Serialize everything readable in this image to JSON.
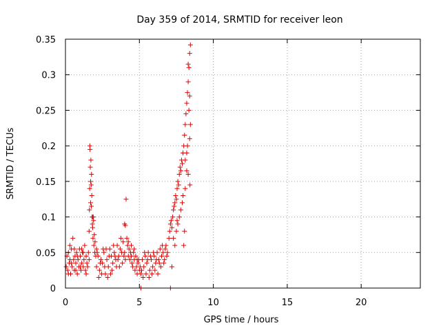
{
  "chart_data": {
    "type": "scatter",
    "title": "Day 359 of 2014, SRMTID for receiver leon",
    "xlabel": "GPS time / hours",
    "ylabel": "SRMTID / TECUs",
    "xlim": [
      0,
      24
    ],
    "ylim": [
      0,
      0.35
    ],
    "xticks": [
      0,
      5,
      10,
      15,
      20
    ],
    "yticks": [
      0,
      0.05,
      0.1,
      0.15,
      0.2,
      0.25,
      0.3,
      0.35
    ],
    "xtick_labels": [
      "0",
      "5",
      "10",
      "15",
      "20"
    ],
    "ytick_labels": [
      "0",
      "0.05",
      "0.1",
      "0.15",
      "0.2",
      "0.25",
      "0.3",
      "0.35"
    ],
    "grid": true,
    "marker": "plus",
    "color": "#e00000",
    "series": [
      {
        "points": [
          [
            0.05,
            0.03
          ],
          [
            0.1,
            0.045
          ],
          [
            0.15,
            0.025
          ],
          [
            0.2,
            0.05
          ],
          [
            0.25,
            0.035
          ],
          [
            0.3,
            0.04
          ],
          [
            0.35,
            0.02
          ],
          [
            0.4,
            0.055
          ],
          [
            0.45,
            0.03
          ],
          [
            0.5,
            0.07
          ],
          [
            0.55,
            0.04
          ],
          [
            0.6,
            0.025
          ],
          [
            0.65,
            0.045
          ],
          [
            0.7,
            0.035
          ],
          [
            0.75,
            0.05
          ],
          [
            0.8,
            0.02
          ],
          [
            0.85,
            0.04
          ],
          [
            0.9,
            0.03
          ],
          [
            0.95,
            0.055
          ],
          [
            1.0,
            0.045
          ],
          [
            1.05,
            0.025
          ],
          [
            1.1,
            0.035
          ],
          [
            1.15,
            0.05
          ],
          [
            1.2,
            0.03
          ],
          [
            1.25,
            0.04
          ],
          [
            1.3,
            0.06
          ],
          [
            1.35,
            0.025
          ],
          [
            1.4,
            0.045
          ],
          [
            1.45,
            0.035
          ],
          [
            1.5,
            0.03
          ],
          [
            1.55,
            0.05
          ],
          [
            1.6,
            0.04
          ],
          [
            0.2,
            0.02
          ],
          [
            0.4,
            0.035
          ],
          [
            0.6,
            0.055
          ],
          [
            0.8,
            0.045
          ],
          [
            1.0,
            0.03
          ],
          [
            1.2,
            0.05
          ],
          [
            1.4,
            0.02
          ],
          [
            0.3,
            0.06
          ],
          [
            0.7,
            0.025
          ],
          [
            1.1,
            0.055
          ],
          [
            1.6,
            0.08
          ],
          [
            1.62,
            0.11
          ],
          [
            1.64,
            0.14
          ],
          [
            1.65,
            0.2
          ],
          [
            1.66,
            0.195
          ],
          [
            1.68,
            0.17
          ],
          [
            1.7,
            0.15
          ],
          [
            1.72,
            0.18
          ],
          [
            1.74,
            0.145
          ],
          [
            1.76,
            0.16
          ],
          [
            1.78,
            0.13
          ],
          [
            1.8,
            0.1
          ],
          [
            1.82,
            0.09
          ],
          [
            1.84,
            0.085
          ],
          [
            1.86,
            0.07
          ],
          [
            1.88,
            0.1
          ],
          [
            1.9,
            0.095
          ],
          [
            1.92,
            0.06
          ],
          [
            1.95,
            0.075
          ],
          [
            1.98,
            0.05
          ],
          [
            2.0,
            0.065
          ],
          [
            2.05,
            0.045
          ],
          [
            2.1,
            0.055
          ],
          [
            1.7,
            0.12
          ],
          [
            1.75,
            0.115
          ],
          [
            1.85,
            0.1
          ],
          [
            2.1,
            0.03
          ],
          [
            2.2,
            0.045
          ],
          [
            2.3,
            0.025
          ],
          [
            2.4,
            0.04
          ],
          [
            2.5,
            0.035
          ],
          [
            2.6,
            0.05
          ],
          [
            2.7,
            0.02
          ],
          [
            2.8,
            0.04
          ],
          [
            2.9,
            0.03
          ],
          [
            3.0,
            0.055
          ],
          [
            3.1,
            0.045
          ],
          [
            3.2,
            0.035
          ],
          [
            3.3,
            0.05
          ],
          [
            3.4,
            0.04
          ],
          [
            3.5,
            0.06
          ],
          [
            3.6,
            0.045
          ],
          [
            3.7,
            0.055
          ],
          [
            3.8,
            0.05
          ],
          [
            3.9,
            0.065
          ],
          [
            4.0,
            0.05
          ],
          [
            2.25,
            0.015
          ],
          [
            2.55,
            0.055
          ],
          [
            2.85,
            0.015
          ],
          [
            3.15,
            0.025
          ],
          [
            3.45,
            0.03
          ],
          [
            3.75,
            0.07
          ],
          [
            4.05,
            0.04
          ],
          [
            2.35,
            0.035
          ],
          [
            2.65,
            0.03
          ],
          [
            2.95,
            0.045
          ],
          [
            3.25,
            0.06
          ],
          [
            3.55,
            0.04
          ],
          [
            3.85,
            0.035
          ],
          [
            2.15,
            0.05
          ],
          [
            2.45,
            0.02
          ],
          [
            2.75,
            0.055
          ],
          [
            3.05,
            0.02
          ],
          [
            3.35,
            0.045
          ],
          [
            3.65,
            0.03
          ],
          [
            3.95,
            0.045
          ],
          [
            4.0,
            0.09
          ],
          [
            4.05,
            0.088
          ],
          [
            4.1,
            0.125
          ],
          [
            4.15,
            0.07
          ],
          [
            4.2,
            0.06
          ],
          [
            4.25,
            0.065
          ],
          [
            4.3,
            0.055
          ],
          [
            4.35,
            0.04
          ],
          [
            4.4,
            0.05
          ],
          [
            4.45,
            0.045
          ],
          [
            4.5,
            0.035
          ],
          [
            4.55,
            0.03
          ],
          [
            4.6,
            0.05
          ],
          [
            4.65,
            0.04
          ],
          [
            4.7,
            0.025
          ],
          [
            4.75,
            0.045
          ],
          [
            4.8,
            0.03
          ],
          [
            4.85,
            0.02
          ],
          [
            4.9,
            0.035
          ],
          [
            4.95,
            0.04
          ],
          [
            5.0,
            0.025
          ],
          [
            5.05,
            0.03
          ],
          [
            5.1,
            0.02
          ],
          [
            4.25,
            0.045
          ],
          [
            4.45,
            0.06
          ],
          [
            4.65,
            0.055
          ],
          [
            4.85,
            0.04
          ],
          [
            5.1,
            0.0
          ],
          [
            5.15,
            0.025
          ],
          [
            5.2,
            0.04
          ],
          [
            5.3,
            0.03
          ],
          [
            5.4,
            0.045
          ],
          [
            5.5,
            0.035
          ],
          [
            5.6,
            0.05
          ],
          [
            5.7,
            0.025
          ],
          [
            5.8,
            0.04
          ],
          [
            5.9,
            0.03
          ],
          [
            6.0,
            0.045
          ],
          [
            6.1,
            0.035
          ],
          [
            6.2,
            0.05
          ],
          [
            6.3,
            0.04
          ],
          [
            6.4,
            0.055
          ],
          [
            6.5,
            0.045
          ],
          [
            6.6,
            0.05
          ],
          [
            6.7,
            0.04
          ],
          [
            6.8,
            0.06
          ],
          [
            6.9,
            0.05
          ],
          [
            5.25,
            0.015
          ],
          [
            5.45,
            0.02
          ],
          [
            5.65,
            0.015
          ],
          [
            5.85,
            0.02
          ],
          [
            6.05,
            0.025
          ],
          [
            6.25,
            0.02
          ],
          [
            6.45,
            0.03
          ],
          [
            6.65,
            0.035
          ],
          [
            6.85,
            0.045
          ],
          [
            5.35,
            0.05
          ],
          [
            5.55,
            0.04
          ],
          [
            5.75,
            0.045
          ],
          [
            5.95,
            0.05
          ],
          [
            6.15,
            0.04
          ],
          [
            6.35,
            0.035
          ],
          [
            6.55,
            0.06
          ],
          [
            6.75,
            0.055
          ],
          [
            7.1,
            0.0
          ],
          [
            7.2,
            0.03
          ],
          [
            7.0,
            0.07
          ],
          [
            7.05,
            0.08
          ],
          [
            7.1,
            0.09
          ],
          [
            7.15,
            0.095
          ],
          [
            7.2,
            0.085
          ],
          [
            7.25,
            0.1
          ],
          [
            7.3,
            0.11
          ],
          [
            7.35,
            0.115
          ],
          [
            7.4,
            0.12
          ],
          [
            7.45,
            0.13
          ],
          [
            7.5,
            0.125
          ],
          [
            7.55,
            0.14
          ],
          [
            7.6,
            0.15
          ],
          [
            7.65,
            0.145
          ],
          [
            7.7,
            0.16
          ],
          [
            7.75,
            0.17
          ],
          [
            7.8,
            0.165
          ],
          [
            7.85,
            0.18
          ],
          [
            7.9,
            0.175
          ],
          [
            7.95,
            0.19
          ],
          [
            8.0,
            0.2
          ],
          [
            8.05,
            0.215
          ],
          [
            8.1,
            0.23
          ],
          [
            8.15,
            0.245
          ],
          [
            8.2,
            0.26
          ],
          [
            8.25,
            0.275
          ],
          [
            8.3,
            0.29
          ],
          [
            8.35,
            0.31
          ],
          [
            8.4,
            0.33
          ],
          [
            8.45,
            0.342
          ],
          [
            7.3,
            0.07
          ],
          [
            7.5,
            0.08
          ],
          [
            7.7,
            0.1
          ],
          [
            7.9,
            0.12
          ],
          [
            8.1,
            0.14
          ],
          [
            8.3,
            0.16
          ],
          [
            8.0,
            0.06
          ],
          [
            8.05,
            0.08
          ],
          [
            7.6,
            0.09
          ],
          [
            7.8,
            0.11
          ],
          [
            8.2,
            0.19
          ],
          [
            8.4,
            0.21
          ],
          [
            8.45,
            0.23
          ],
          [
            8.1,
            0.18
          ],
          [
            8.25,
            0.2
          ],
          [
            8.35,
            0.25
          ],
          [
            8.4,
            0.27
          ],
          [
            8.3,
            0.315
          ],
          [
            8.42,
            0.145
          ],
          [
            8.2,
            0.165
          ],
          [
            7.4,
            0.06
          ],
          [
            7.55,
            0.095
          ],
          [
            7.95,
            0.13
          ]
        ]
      }
    ]
  }
}
